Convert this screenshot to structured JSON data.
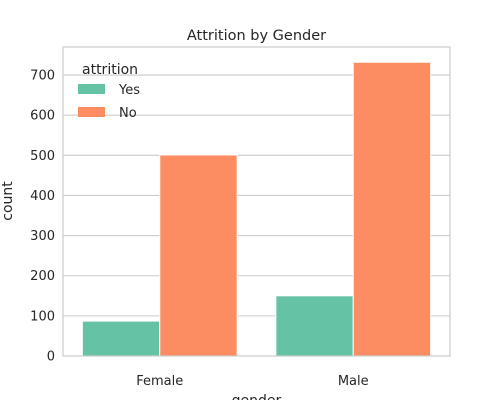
{
  "chart_data": {
    "type": "bar",
    "title": "Attrition by Gender",
    "xlabel": "gender",
    "ylabel": "count",
    "categories": [
      "Female",
      "Male"
    ],
    "series": [
      {
        "name": "Yes",
        "values": [
          87,
          150
        ],
        "color": "#66c2a5"
      },
      {
        "name": "No",
        "values": [
          501,
          732
        ],
        "color": "#fc8d62"
      }
    ],
    "ylim": [
      0,
      770
    ],
    "yticks": [
      0,
      100,
      200,
      300,
      400,
      500,
      600,
      700
    ],
    "grid": true,
    "legend": {
      "title": "attrition",
      "placement": "top-left"
    }
  }
}
